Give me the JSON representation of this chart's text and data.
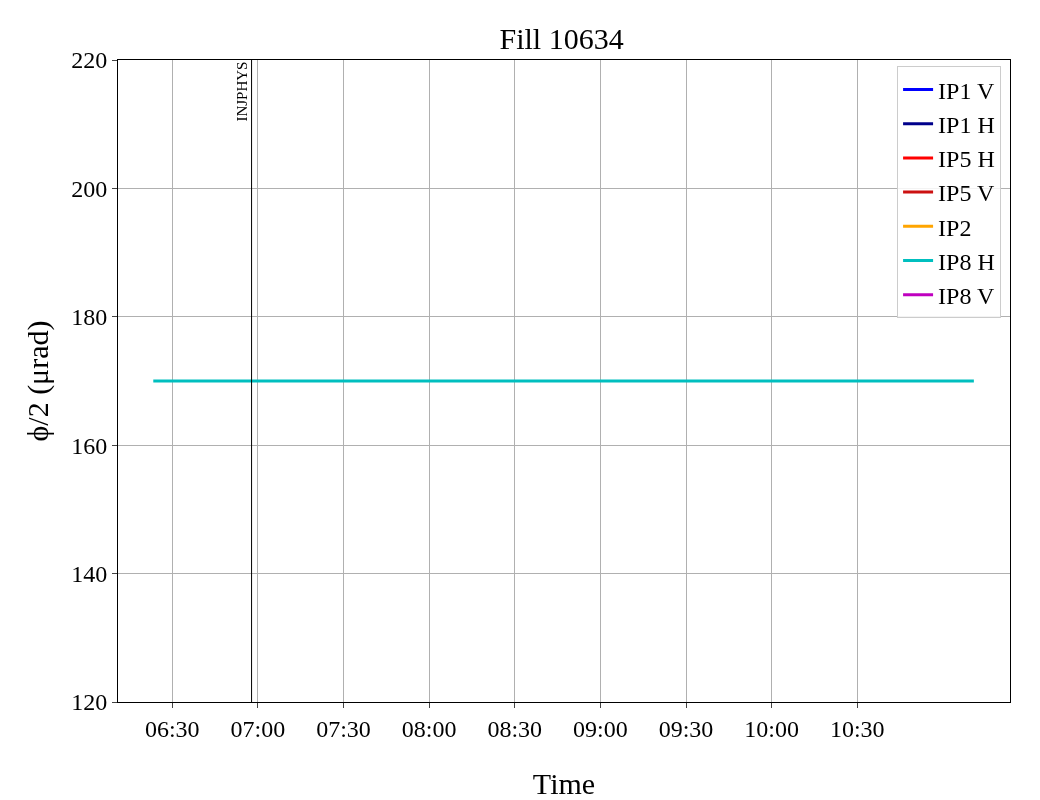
{
  "chart_data": {
    "type": "line",
    "title": "Fill 10634",
    "xlabel": "Time",
    "ylabel": "ϕ/2 (μrad)",
    "x": [
      6.389,
      11.181
    ],
    "series": [
      {
        "name": "IP1 V",
        "color": "#0000ff",
        "values": [
          null,
          null
        ]
      },
      {
        "name": "IP1 H",
        "color": "#00008b",
        "values": [
          null,
          null
        ]
      },
      {
        "name": "IP5 H",
        "color": "#ff0000",
        "values": [
          null,
          null
        ]
      },
      {
        "name": "IP5 V",
        "color": "#cc1111",
        "values": [
          null,
          null
        ]
      },
      {
        "name": "IP2",
        "color": "#ffa500",
        "values": [
          null,
          null
        ]
      },
      {
        "name": "IP8 H",
        "color": "#00bfbf",
        "values": [
          170,
          170
        ]
      },
      {
        "name": "IP8 V",
        "color": "#bf00bf",
        "values": [
          null,
          null
        ]
      }
    ],
    "xlim": [
      6.183,
      11.392
    ],
    "xticks": [
      {
        "value": 6.5,
        "label": "06:30"
      },
      {
        "value": 7,
        "label": "07:00"
      },
      {
        "value": 7.5,
        "label": "07:30"
      },
      {
        "value": 8,
        "label": "08:00"
      },
      {
        "value": 8.5,
        "label": "08:30"
      },
      {
        "value": 9,
        "label": "09:00"
      },
      {
        "value": 9.5,
        "label": "09:30"
      },
      {
        "value": 10,
        "label": "10:00"
      },
      {
        "value": 10.5,
        "label": "10:30"
      }
    ],
    "ylim": [
      120,
      220
    ],
    "yticks": [
      120,
      140,
      160,
      180,
      200,
      220
    ],
    "ref_lines": [
      {
        "axis": "x",
        "value": 6.963,
        "label": "INJPHYS",
        "color": "#000000"
      }
    ],
    "grid": true,
    "legend": "top right",
    "marker": "none",
    "line_style": "solid"
  }
}
